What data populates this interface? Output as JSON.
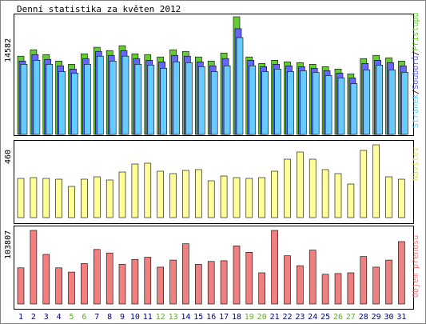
{
  "chart_data": [
    {
      "type": "bar",
      "title": "Denní statistika za květen 2012",
      "ylabel_max": "14582",
      "legend": [
        "Stránek",
        "Souborů",
        "Přístupů"
      ],
      "categories": [
        "1",
        "2",
        "3",
        "4",
        "5",
        "6",
        "7",
        "8",
        "9",
        "10",
        "11",
        "12",
        "13",
        "14",
        "15",
        "16",
        "17",
        "18",
        "19",
        "20",
        "21",
        "22",
        "23",
        "24",
        "25",
        "26",
        "27",
        "28",
        "29",
        "30",
        "31"
      ],
      "weekend_days": [
        "5",
        "6",
        "12",
        "13",
        "19",
        "20",
        "26",
        "27"
      ],
      "ylim": [
        0,
        14582
      ],
      "series": [
        {
          "name": "Přístupů",
          "values": [
            9700,
            10500,
            9900,
            9100,
            8700,
            10000,
            10800,
            10400,
            11000,
            10000,
            9900,
            9600,
            10500,
            10300,
            9600,
            9100,
            10100,
            14582,
            9600,
            8800,
            9200,
            9000,
            8900,
            8700,
            8400,
            8100,
            7500,
            9400,
            9800,
            9500,
            9100
          ]
        },
        {
          "name": "Souborů",
          "values": [
            9100,
            9900,
            9300,
            8500,
            8100,
            9400,
            10300,
            9800,
            10400,
            9400,
            9200,
            9000,
            9800,
            9700,
            9000,
            8500,
            9400,
            13100,
            9200,
            8400,
            8700,
            8500,
            8400,
            8200,
            7900,
            7600,
            7000,
            8800,
            9200,
            8900,
            8500
          ]
        },
        {
          "name": "Stránek",
          "values": [
            8700,
            9200,
            8700,
            7800,
            7600,
            8700,
            9700,
            9100,
            9700,
            8700,
            8600,
            8200,
            9000,
            8900,
            8400,
            7800,
            8500,
            12000,
            8500,
            7800,
            8100,
            7800,
            7900,
            7700,
            7300,
            7000,
            6300,
            8000,
            8600,
            8000,
            7700
          ]
        }
      ]
    },
    {
      "type": "bar",
      "ylabel": "Návštěv",
      "ylabel_max": "460",
      "ylim": [
        0,
        460
      ],
      "categories": [
        "1",
        "2",
        "3",
        "4",
        "5",
        "6",
        "7",
        "8",
        "9",
        "10",
        "11",
        "12",
        "13",
        "14",
        "15",
        "16",
        "17",
        "18",
        "19",
        "20",
        "21",
        "22",
        "23",
        "24",
        "25",
        "26",
        "27",
        "28",
        "29",
        "30",
        "31"
      ],
      "series": [
        {
          "name": "Návštěv",
          "values": [
            245,
            250,
            245,
            240,
            195,
            240,
            255,
            235,
            285,
            335,
            340,
            290,
            275,
            295,
            300,
            230,
            260,
            250,
            245,
            250,
            290,
            365,
            410,
            365,
            300,
            275,
            210,
            420,
            455,
            255,
            240
          ]
        }
      ]
    },
    {
      "type": "bar",
      "ylabel": "Objem přenosu",
      "ylabel_max": "103807",
      "ylim": [
        0,
        103807
      ],
      "categories": [
        "1",
        "2",
        "3",
        "4",
        "5",
        "6",
        "7",
        "8",
        "9",
        "10",
        "11",
        "12",
        "13",
        "14",
        "15",
        "16",
        "17",
        "18",
        "19",
        "20",
        "21",
        "22",
        "23",
        "24",
        "25",
        "26",
        "27",
        "28",
        "29",
        "30",
        "31"
      ],
      "series": [
        {
          "name": "Objem přenosu",
          "values": [
            51000,
            103807,
            70000,
            51000,
            45000,
            57000,
            77000,
            72000,
            56000,
            63000,
            66000,
            52000,
            62000,
            85000,
            56000,
            60000,
            61000,
            82000,
            73000,
            44000,
            103807,
            68000,
            54000,
            76000,
            42000,
            43000,
            44000,
            67000,
            52000,
            62000,
            88000
          ]
        }
      ]
    }
  ],
  "colors": {
    "hits": "#66cc33",
    "files": "#6666ff",
    "pages": "#66ccff",
    "visits": "#ffff99",
    "kbytes": "#f08080",
    "weekend_label": "#66aa33",
    "weekday_label": "#000080",
    "frame": "#000000",
    "page_bg": "#ffffff"
  }
}
